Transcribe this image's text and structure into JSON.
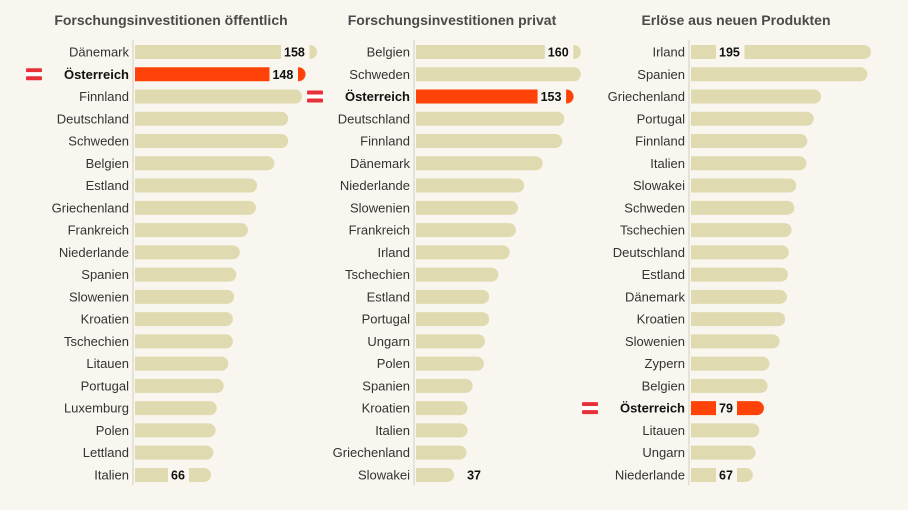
{
  "chart_data": [
    {
      "type": "bar",
      "orientation": "horizontal",
      "title": "Forschungsinvestitionen öffentlich",
      "categories": [
        "Dänemark",
        "Österreich",
        "Finnland",
        "Deutschland",
        "Schweden",
        "Belgien",
        "Estland",
        "Griechenland",
        "Frankreich",
        "Niederlande",
        "Spanien",
        "Slowenien",
        "Kroatien",
        "Tschechien",
        "Litauen",
        "Portugal",
        "Luxemburg",
        "Polen",
        "Lettland",
        "Italien"
      ],
      "values": [
        158,
        148,
        145,
        133,
        133,
        121,
        106,
        105,
        98,
        91,
        88,
        86,
        85,
        85,
        81,
        77,
        71,
        70,
        68,
        66
      ],
      "labeled": {
        "Dänemark": "158",
        "Österreich": "148",
        "Italien": "66"
      },
      "highlight": "Österreich"
    },
    {
      "type": "bar",
      "orientation": "horizontal",
      "title": "Forschungsinvestitionen privat",
      "categories": [
        "Belgien",
        "Schweden",
        "Österreich",
        "Deutschland",
        "Finnland",
        "Dänemark",
        "Niederlande",
        "Slowenien",
        "Frankreich",
        "Irland",
        "Tschechien",
        "Estland",
        "Portugal",
        "Ungarn",
        "Polen",
        "Spanien",
        "Kroatien",
        "Italien",
        "Griechenland",
        "Slowakei"
      ],
      "values": [
        160,
        160,
        153,
        144,
        142,
        123,
        105,
        99,
        97,
        91,
        80,
        71,
        71,
        67,
        66,
        55,
        50,
        50,
        49,
        37
      ],
      "labeled": {
        "Belgien": "160",
        "Österreich": "153",
        "Slowakei": "37"
      },
      "highlight": "Österreich"
    },
    {
      "type": "bar",
      "orientation": "horizontal",
      "title": "Erlöse aus neuen Produkten",
      "categories": [
        "Irland",
        "Spanien",
        "Griechenland",
        "Portugal",
        "Finnland",
        "Italien",
        "Slowakei",
        "Schweden",
        "Tschechien",
        "Deutschland",
        "Estland",
        "Dänemark",
        "Kroatien",
        "Slowenien",
        "Zypern",
        "Belgien",
        "Österreich",
        "Litauen",
        "Ungarn",
        "Niederlande"
      ],
      "values": [
        195,
        191,
        141,
        133,
        126,
        125,
        114,
        112,
        109,
        106,
        105,
        104,
        102,
        96,
        85,
        83,
        79,
        74,
        70,
        67
      ],
      "labeled": {
        "Irland": "195",
        "Österreich": "79",
        "Niederlande": "67"
      },
      "highlight": "Österreich"
    }
  ],
  "colors": {
    "bar": "#e0dab0",
    "highlight": "#ff4208",
    "background": "#f8f6ee",
    "axis": "#d8d6cc",
    "flag_red": "#e8303a"
  },
  "flag_icon": "austria-flag-icon"
}
